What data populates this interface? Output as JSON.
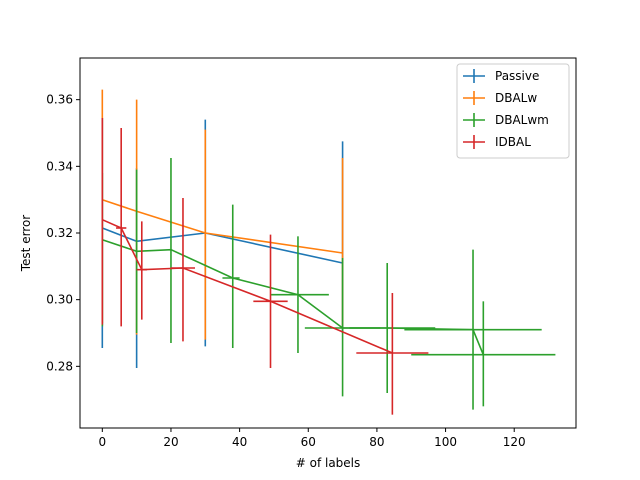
{
  "chart_data": {
    "type": "line",
    "title": "",
    "xlabel": "# of labels",
    "ylabel": "Test error",
    "xlim": [
      -6.5,
      138
    ],
    "ylim": [
      0.2615,
      0.3725
    ],
    "xticks": [
      0,
      20,
      40,
      60,
      80,
      100,
      120
    ],
    "yticks": [
      0.28,
      0.3,
      0.32,
      0.34,
      0.36
    ],
    "ytick_labels": [
      "0.28",
      "0.30",
      "0.32",
      "0.34",
      "0.36"
    ],
    "legend_position": "top-right",
    "series": [
      {
        "name": "Passive",
        "color": "#1f77b4",
        "points": [
          {
            "x": 0,
            "y": 0.3215,
            "yerr": [
              0.2855,
              0.3545
            ],
            "xerr": null
          },
          {
            "x": 10,
            "y": 0.3175,
            "yerr": [
              0.2795,
              0.3395
            ],
            "xerr": null
          },
          {
            "x": 30,
            "y": 0.32,
            "yerr": [
              0.286,
              0.354
            ],
            "xerr": null
          },
          {
            "x": 70,
            "y": 0.311,
            "yerr": [
              0.29,
              0.3475
            ],
            "xerr": null
          }
        ]
      },
      {
        "name": "DBALw",
        "color": "#ff7f0e",
        "points": [
          {
            "x": 0,
            "y": 0.33,
            "yerr": [
              0.293,
              0.363
            ],
            "xerr": null
          },
          {
            "x": 10,
            "y": 0.3265,
            "yerr": [
              0.2895,
              0.36
            ],
            "xerr": null
          },
          {
            "x": 30,
            "y": 0.32,
            "yerr": [
              0.288,
              0.351
            ],
            "xerr": null
          },
          {
            "x": 70,
            "y": 0.314,
            "yerr": [
              0.292,
              0.3425
            ],
            "xerr": null
          }
        ]
      },
      {
        "name": "DBALwm",
        "color": "#2ca02c",
        "points": [
          {
            "x": 0,
            "y": 0.318,
            "yerr": [
              0.292,
              0.338
            ],
            "xerr": null
          },
          {
            "x": 10,
            "y": 0.3145,
            "yerr": [
              0.29,
              0.339
            ],
            "xerr": null
          },
          {
            "x": 20,
            "y": 0.315,
            "yerr": [
              0.287,
              0.3425
            ],
            "xerr": null
          },
          {
            "x": 38,
            "y": 0.3065,
            "yerr": [
              0.2855,
              0.3285
            ],
            "xerr": [
              35,
              40
            ]
          },
          {
            "x": 57,
            "y": 0.3015,
            "yerr": [
              0.284,
              0.319
            ],
            "xerr": [
              49,
              66
            ]
          },
          {
            "x": 70,
            "y": 0.2915,
            "yerr": [
              0.271,
              0.3125
            ],
            "xerr": [
              59,
              81
            ]
          },
          {
            "x": 83,
            "y": 0.2915,
            "yerr": [
              0.272,
              0.311
            ],
            "xerr": [
              72,
              97
            ]
          },
          {
            "x": 108,
            "y": 0.291,
            "yerr": [
              0.267,
              0.315
            ],
            "xerr": [
              88,
              128
            ]
          },
          {
            "x": 111,
            "y": 0.2835,
            "yerr": [
              0.268,
              0.2995
            ],
            "xerr": [
              90,
              132
            ]
          }
        ]
      },
      {
        "name": "IDBAL",
        "color": "#d62728",
        "points": [
          {
            "x": 0,
            "y": 0.324,
            "yerr": [
              0.2925,
              0.3545
            ],
            "xerr": null
          },
          {
            "x": 5.5,
            "y": 0.3215,
            "yerr": [
              0.292,
              0.3515
            ],
            "xerr": [
              4,
              7
            ]
          },
          {
            "x": 11.5,
            "y": 0.309,
            "yerr": [
              0.294,
              0.3235
            ],
            "xerr": [
              10,
              13
            ]
          },
          {
            "x": 23.5,
            "y": 0.3095,
            "yerr": [
              0.2875,
              0.3305
            ],
            "xerr": [
              20,
              27
            ]
          },
          {
            "x": 49,
            "y": 0.2995,
            "yerr": [
              0.2795,
              0.3195
            ],
            "xerr": [
              44,
              54
            ]
          },
          {
            "x": 84.5,
            "y": 0.284,
            "yerr": [
              0.2655,
              0.302
            ],
            "xerr": [
              74,
              95
            ]
          }
        ]
      }
    ]
  }
}
